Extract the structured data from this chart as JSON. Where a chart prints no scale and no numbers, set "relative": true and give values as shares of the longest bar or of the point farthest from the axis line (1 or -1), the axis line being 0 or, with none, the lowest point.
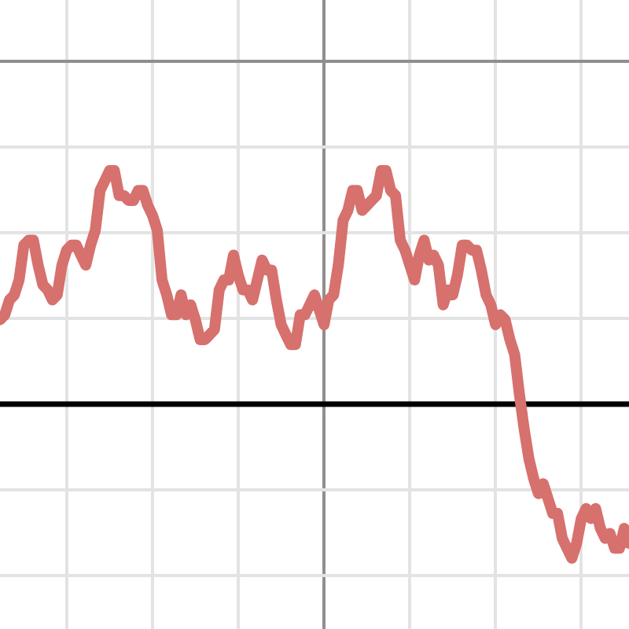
{
  "chart_data": {
    "type": "line",
    "relative": true,
    "grid": true,
    "categories": [
      null,
      null,
      null,
      null,
      null,
      null,
      null,
      null,
      null,
      null,
      null,
      null,
      null,
      null,
      null,
      null,
      null,
      null,
      null,
      null,
      null,
      null,
      null,
      null,
      null,
      null,
      null,
      null,
      null,
      null,
      null,
      null,
      null,
      null,
      null,
      null,
      null,
      null,
      null,
      null,
      null,
      null,
      null,
      null,
      null,
      null,
      null,
      null,
      null,
      null,
      null,
      null,
      null,
      null,
      null,
      null,
      null,
      null,
      null,
      null,
      null,
      null,
      null,
      null,
      null,
      null,
      null,
      null,
      null,
      null,
      null,
      null,
      null,
      null,
      null,
      null,
      null,
      null,
      null,
      null,
      null,
      null,
      null,
      null,
      null,
      null,
      null,
      null,
      null,
      null,
      null,
      null,
      null,
      null,
      null,
      null,
      null,
      null,
      null,
      null,
      null,
      null,
      null,
      null,
      null,
      null,
      null,
      null,
      null,
      null,
      null,
      null,
      null,
      null,
      null,
      null,
      null,
      null,
      null,
      null,
      null,
      null,
      null,
      null,
      null,
      null,
      null,
      null,
      null,
      null,
      null,
      null,
      null
    ],
    "series": [
      {
        "color": "#d6716e",
        "values": [
          -0.52,
          -0.51,
          -0.48,
          -0.47,
          -0.44,
          -0.37,
          -0.36,
          -0.36,
          -0.41,
          -0.45,
          -0.46,
          -0.48,
          -0.47,
          -0.41,
          -0.38,
          -0.37,
          -0.37,
          -0.39,
          -0.41,
          -0.37,
          -0.34,
          -0.26,
          -0.24,
          -0.22,
          -0.22,
          -0.27,
          -0.27,
          -0.28,
          -0.28,
          -0.26,
          -0.26,
          -0.29,
          -0.31,
          -0.34,
          -0.44,
          -0.47,
          -0.51,
          -0.51,
          -0.47,
          -0.51,
          -0.49,
          -0.52,
          -0.56,
          -0.56,
          -0.55,
          -0.54,
          -0.46,
          -0.44,
          -0.44,
          -0.39,
          -0.43,
          -0.46,
          -0.46,
          -0.48,
          -0.44,
          -0.4,
          -0.42,
          -0.42,
          -0.48,
          -0.53,
          -0.55,
          -0.57,
          -0.57,
          -0.51,
          -0.51,
          -0.49,
          -0.47,
          -0.5,
          -0.53,
          -0.48,
          -0.47,
          -0.41,
          -0.32,
          -0.3,
          -0.26,
          -0.26,
          -0.3,
          -0.29,
          -0.28,
          -0.27,
          -0.22,
          -0.22,
          -0.26,
          -0.27,
          -0.36,
          -0.38,
          -0.41,
          -0.44,
          -0.39,
          -0.36,
          -0.4,
          -0.39,
          -0.41,
          -0.49,
          -0.46,
          -0.47,
          -0.43,
          -0.37,
          -0.37,
          -0.38,
          -0.38,
          -0.42,
          -0.47,
          -0.49,
          -0.53,
          -0.51,
          -0.52,
          -0.56,
          -0.59,
          -0.67,
          -0.74,
          -0.8,
          -0.84,
          -0.87,
          -0.85,
          -0.88,
          -0.91,
          -0.91,
          -0.96,
          -0.98,
          -1,
          -0.97,
          -0.92,
          -0.9,
          -0.92,
          -0.9,
          -0.94,
          -0.96,
          -0.95,
          -0.98,
          -0.98,
          -0.94,
          -0.97
        ]
      }
    ],
    "ref_lines": [
      {
        "axis": "y",
        "value": -0.69,
        "color": "#000000"
      }
    ]
  }
}
